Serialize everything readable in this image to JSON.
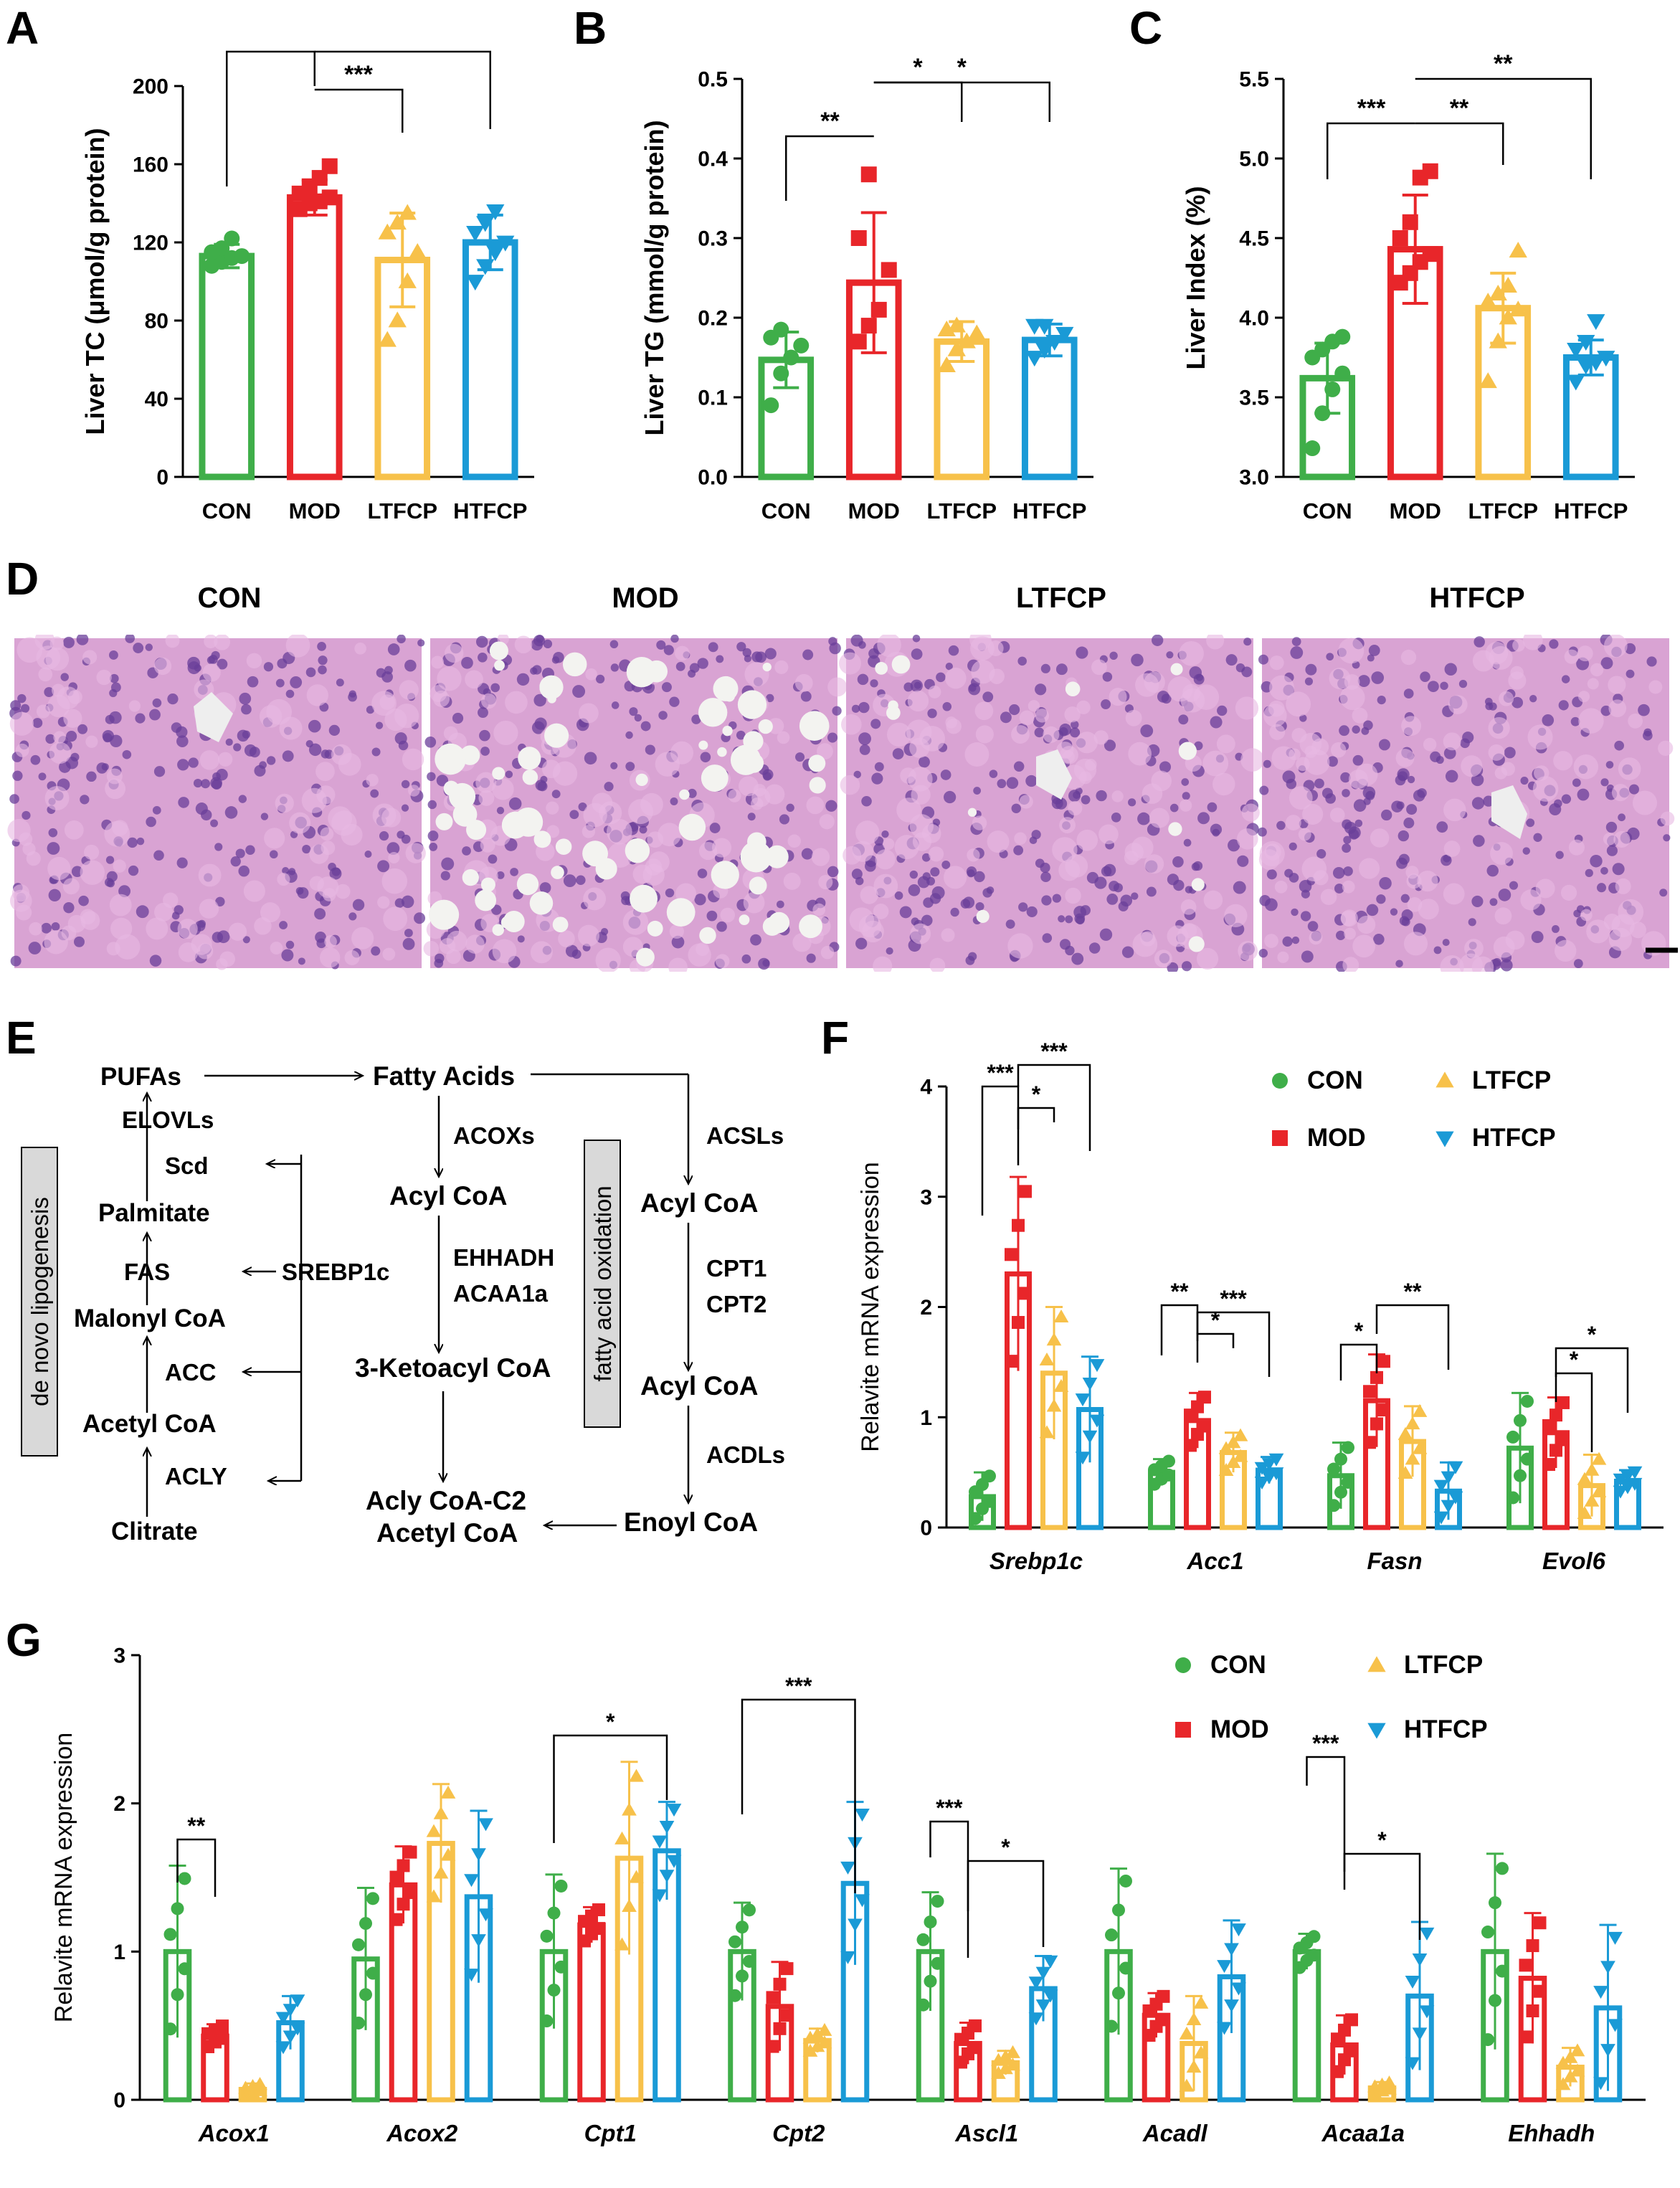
{
  "figure": {
    "panel_letters": {
      "A": "A",
      "B": "B",
      "C": "C",
      "D": "D",
      "E": "E",
      "F": "F",
      "G": "G"
    }
  },
  "colors": {
    "CON": "#3fae49",
    "MOD": "#e8262a",
    "LTFCP": "#f7c14a",
    "HTFCP": "#1a9ad6"
  },
  "chart_data": [
    {
      "panel": "A",
      "type": "bar",
      "ylabel": "Liver TC (μmol/g protein)",
      "ylim": [
        0,
        200
      ],
      "yticks": [
        "0",
        "40",
        "80",
        "120",
        "160",
        "200"
      ],
      "categories": [
        "CON",
        "MOD",
        "LTFCP",
        "HTFCP"
      ],
      "values": [
        113,
        143,
        111,
        120
      ],
      "errors": [
        6,
        9,
        24,
        14
      ],
      "points": [
        [
          108,
          110,
          112,
          113,
          115,
          117,
          122
        ],
        [
          137,
          140,
          141,
          143,
          145,
          148,
          153,
          159
        ],
        [
          70,
          80,
          100,
          115,
          125,
          130,
          135
        ],
        [
          100,
          108,
          115,
          120,
          125,
          130,
          136
        ]
      ],
      "sig": [
        {
          "a": 0,
          "b": 1,
          "label": "**"
        },
        {
          "a": 1,
          "b": 2,
          "label": "***"
        },
        {
          "a": 1,
          "b": 3,
          "label": "**"
        }
      ]
    },
    {
      "panel": "B",
      "type": "bar",
      "ylabel": "Liver TG (mmol/g protein)",
      "ylim": [
        0,
        0.5
      ],
      "yticks": [
        "0.0",
        "0.1",
        "0.2",
        "0.3",
        "0.4",
        "0.5"
      ],
      "categories": [
        "CON",
        "MOD",
        "LTFCP",
        "HTFCP"
      ],
      "values": [
        0.147,
        0.244,
        0.17,
        0.172
      ],
      "errors": [
        0.035,
        0.088,
        0.025,
        0.02
      ],
      "points": [
        [
          0.09,
          0.13,
          0.15,
          0.165,
          0.175,
          0.185
        ],
        [
          0.17,
          0.19,
          0.21,
          0.26,
          0.3,
          0.38
        ],
        [
          0.14,
          0.16,
          0.17,
          0.18,
          0.185,
          0.19
        ],
        [
          0.15,
          0.16,
          0.17,
          0.18,
          0.19,
          0.19
        ]
      ],
      "sig": [
        {
          "a": 0,
          "b": 1,
          "label": "**"
        },
        {
          "a": 1,
          "b": 2,
          "label": "*"
        },
        {
          "a": 1,
          "b": 3,
          "label": "*"
        }
      ]
    },
    {
      "panel": "C",
      "type": "bar",
      "ylabel": "Liver Index (%)",
      "ylim": [
        3.0,
        5.5
      ],
      "yticks": [
        "3.0",
        "3.5",
        "4.0",
        "4.5",
        "5.0",
        "5.5"
      ],
      "categories": [
        "CON",
        "MOD",
        "LTFCP",
        "HTFCP"
      ],
      "values": [
        3.62,
        4.43,
        4.06,
        3.75
      ],
      "errors": [
        0.22,
        0.34,
        0.22,
        0.11
      ],
      "points": [
        [
          3.18,
          3.4,
          3.55,
          3.65,
          3.75,
          3.8,
          3.85,
          3.88
        ],
        [
          4.22,
          4.28,
          4.35,
          4.4,
          4.5,
          4.6,
          4.88,
          4.92
        ],
        [
          3.6,
          3.85,
          4.0,
          4.05,
          4.1,
          4.15,
          4.2,
          4.42
        ],
        [
          3.6,
          3.7,
          3.72,
          3.75,
          3.8,
          3.85,
          3.98
        ]
      ],
      "sig": [
        {
          "a": 0,
          "b": 1,
          "label": "***"
        },
        {
          "a": 1,
          "b": 2,
          "label": "**"
        },
        {
          "a": 1,
          "b": 3,
          "label": "**"
        }
      ]
    },
    {
      "panel": "F",
      "type": "bar",
      "ylabel": "Relavite mRNA expression",
      "ylim": [
        0,
        4
      ],
      "yticks": [
        "0",
        "1",
        "2",
        "3",
        "4"
      ],
      "categories": [
        "Srebp1c",
        "Acc1",
        "Fasn",
        "Evol6"
      ],
      "series": [
        {
          "name": "CON",
          "values": [
            0.28,
            0.5,
            0.47,
            0.72
          ],
          "errors": [
            0.22,
            0.12,
            0.3,
            0.5
          ]
        },
        {
          "name": "MOD",
          "values": [
            2.3,
            0.97,
            1.15,
            0.86
          ],
          "errors": [
            0.88,
            0.25,
            0.42,
            0.32
          ]
        },
        {
          "name": "LTFCP",
          "values": [
            1.4,
            0.68,
            0.78,
            0.38
          ],
          "errors": [
            0.6,
            0.18,
            0.32,
            0.28
          ]
        },
        {
          "name": "HTFCP",
          "values": [
            1.07,
            0.52,
            0.33,
            0.42
          ],
          "errors": [
            0.48,
            0.12,
            0.26,
            0.1
          ]
        }
      ],
      "sig": [
        {
          "group": 0,
          "a": 0,
          "b": 1,
          "label": "***"
        },
        {
          "group": 0,
          "a": 1,
          "b": 2,
          "label": "*"
        },
        {
          "group": 0,
          "a": 1,
          "b": 3,
          "label": "***"
        },
        {
          "group": 1,
          "a": 0,
          "b": 1,
          "label": "**"
        },
        {
          "group": 1,
          "a": 1,
          "b": 2,
          "label": "*"
        },
        {
          "group": 1,
          "a": 1,
          "b": 3,
          "label": "***"
        },
        {
          "group": 2,
          "a": 0,
          "b": 1,
          "label": "*"
        },
        {
          "group": 2,
          "a": 1,
          "b": 3,
          "label": "**"
        },
        {
          "group": 3,
          "a": 1,
          "b": 2,
          "label": "*"
        },
        {
          "group": 3,
          "a": 1,
          "b": 3,
          "label": "*"
        }
      ],
      "legend": [
        {
          "name": "CON",
          "shape": "circle"
        },
        {
          "name": "LTFCP",
          "shape": "up"
        },
        {
          "name": "MOD",
          "shape": "square"
        },
        {
          "name": "HTFCP",
          "shape": "down"
        }
      ]
    },
    {
      "panel": "G",
      "type": "bar",
      "ylabel": "Relavite mRNA expression",
      "ylim": [
        0,
        3
      ],
      "yticks": [
        "0",
        "1",
        "2",
        "3"
      ],
      "categories": [
        "Acox1",
        "Acox2",
        "Cpt1",
        "Cpt2",
        "Ascl1",
        "Acadl",
        "Acaa1a",
        "Ehhadh"
      ],
      "series": [
        {
          "name": "CON",
          "values": [
            1.0,
            0.95,
            1.0,
            1.0,
            1.0,
            1.0,
            1.0,
            1.0
          ],
          "errors": [
            0.58,
            0.48,
            0.52,
            0.33,
            0.4,
            0.56,
            0.12,
            0.66
          ]
        },
        {
          "name": "MOD",
          "values": [
            0.43,
            1.45,
            1.18,
            0.63,
            0.38,
            0.57,
            0.37,
            0.82
          ],
          " errors": [
            0.08,
            0.26,
            0.12,
            0.3,
            0.14,
            0.15,
            0.2,
            0.44
          ],
          "errors": [
            0.08,
            0.26,
            0.12,
            0.3,
            0.14,
            0.15,
            0.2,
            0.44
          ]
        },
        {
          "name": "LTFCP",
          "values": [
            0.07,
            1.73,
            1.63,
            0.4,
            0.25,
            0.38,
            0.08,
            0.22
          ],
          "errors": [
            0.04,
            0.4,
            0.65,
            0.08,
            0.08,
            0.32,
            0.04,
            0.13
          ]
        },
        {
          "name": "HTFCP",
          "values": [
            0.52,
            1.37,
            1.68,
            1.46,
            0.75,
            0.83,
            0.7,
            0.62
          ],
          "errors": [
            0.18,
            0.58,
            0.33,
            0.55,
            0.22,
            0.38,
            0.5,
            0.56
          ]
        }
      ],
      "sig": [
        {
          "group": 0,
          "a": 0,
          "b": 1,
          "label": "**"
        },
        {
          "group": 2,
          "a": 0,
          "b": 3,
          "label": "*"
        },
        {
          "group": 3,
          "a": 0,
          "b": 3,
          "label": "***"
        },
        {
          "group": 4,
          "a": 0,
          "b": 1,
          "label": "***"
        },
        {
          "group": 4,
          "a": 1,
          "b": 3,
          "label": "*"
        },
        {
          "group": 6,
          "a": 0,
          "b": 1,
          "label": "***"
        },
        {
          "group": 6,
          "a": 1,
          "b": 3,
          "label": "*"
        }
      ],
      "legend": [
        {
          "name": "CON",
          "shape": "circle"
        },
        {
          "name": "LTFCP",
          "shape": "up"
        },
        {
          "name": "MOD",
          "shape": "square"
        },
        {
          "name": "HTFCP",
          "shape": "down"
        }
      ]
    }
  ],
  "histology": {
    "titles": [
      "CON",
      "MOD",
      "LTFCP",
      "HTFCP"
    ]
  },
  "pathway": {
    "lipogenesis_label": "de novo lipogenesis",
    "oxidation_label": "fatty acid oxidation",
    "nodes": {
      "pufas": "PUFAs",
      "elovls": "ELOVLs",
      "scd": "Scd",
      "palmitate": "Palmitate",
      "fas": "FAS",
      "srebp": "SREBP1c",
      "malonyl": "Malonyl CoA",
      "acc": "ACC",
      "acetyl": "Acetyl CoA",
      "acly": "ACLY",
      "citrate": "Clitrate",
      "fatty": "Fatty Acids",
      "acoxs": "ACOXs",
      "acyl1": "Acyl CoA",
      "ehhadh": "EHHADH",
      "acaa1a": "ACAA1a",
      "keto": "3-Ketoacyl CoA",
      "aclyc2": "Acly CoA-C2",
      "acetyl2": "Acetyl CoA",
      "acsls": "ACSLs",
      "acyl2": "Acyl CoA",
      "cpt1": "CPT1",
      "cpt2": "CPT2",
      "acyl3": "Acyl CoA",
      "acdls": "ACDLs",
      "enoyl": "Enoyl CoA"
    }
  }
}
